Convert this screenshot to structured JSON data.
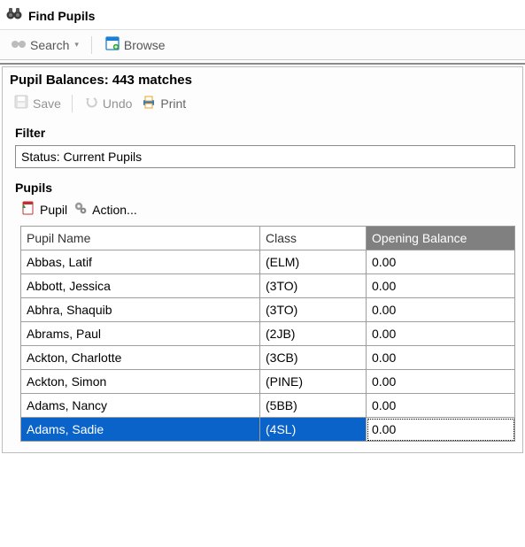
{
  "window": {
    "title": "Find Pupils"
  },
  "toolbar": {
    "search_label": "Search",
    "browse_label": "Browse"
  },
  "panel": {
    "title": "Pupil Balances: 443 matches",
    "save_label": "Save",
    "undo_label": "Undo",
    "print_label": "Print"
  },
  "filter": {
    "section_label": "Filter",
    "text": "Status: Current Pupils"
  },
  "pupils": {
    "section_label": "Pupils",
    "pupil_btn": "Pupil",
    "action_btn": "Action...",
    "columns": {
      "name": "Pupil Name",
      "class": "Class",
      "balance": "Opening Balance"
    },
    "rows": [
      {
        "name": "Abbas, Latif",
        "class": "(ELM)",
        "balance": "0.00",
        "selected": false
      },
      {
        "name": "Abbott, Jessica",
        "class": "(3TO)",
        "balance": "0.00",
        "selected": false
      },
      {
        "name": "Abhra, Shaquib",
        "class": "(3TO)",
        "balance": "0.00",
        "selected": false
      },
      {
        "name": "Abrams, Paul",
        "class": "(2JB)",
        "balance": "0.00",
        "selected": false
      },
      {
        "name": "Ackton, Charlotte",
        "class": "(3CB)",
        "balance": "0.00",
        "selected": false
      },
      {
        "name": "Ackton, Simon",
        "class": "(PINE)",
        "balance": "0.00",
        "selected": false
      },
      {
        "name": "Adams, Nancy",
        "class": "(5BB)",
        "balance": "0.00",
        "selected": false
      },
      {
        "name": "Adams, Sadie",
        "class": "(4SL)",
        "balance": "0.00",
        "selected": true
      }
    ]
  },
  "colors": {
    "selection": "#0a63c9",
    "sorted_header_bg": "#808080",
    "border": "#9e9e9e"
  }
}
